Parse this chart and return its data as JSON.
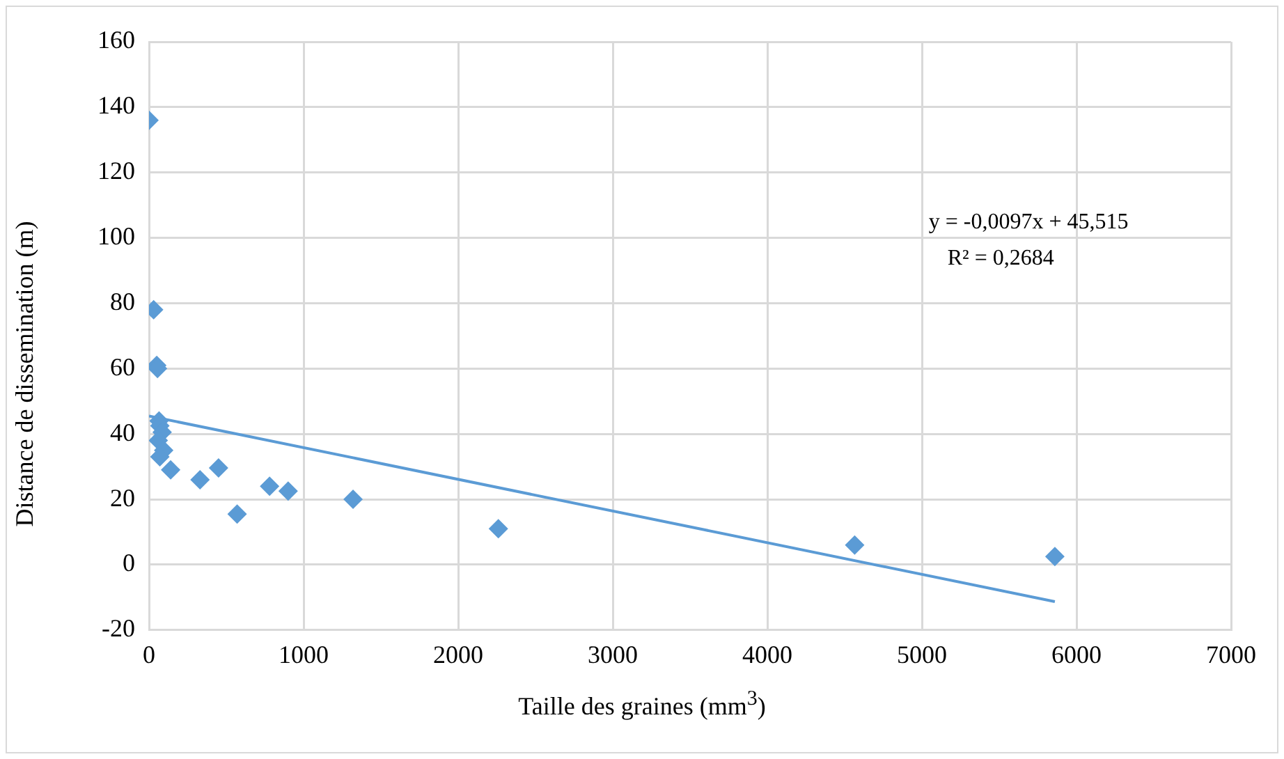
{
  "chart_data": {
    "type": "scatter",
    "xlabel": "Taille des graines (mm$^{3}$)",
    "ylabel": "Distance de dissemination (m)",
    "xlim": [
      0,
      7000
    ],
    "xticks": [
      0,
      1000,
      2000,
      3000,
      4000,
      5000,
      6000,
      7000
    ],
    "ylim": [
      -20,
      160
    ],
    "yticks": [
      -20,
      0,
      20,
      40,
      60,
      80,
      100,
      120,
      140,
      160
    ],
    "grid": true,
    "legend": false,
    "marker": "diamond",
    "annotations": [
      "y = -0,0097x + 45,515",
      "R² = 0,2684"
    ],
    "series": [
      {
        "color": "#5b9bd5",
        "x": [
          0,
          30,
          50,
          55,
          65,
          70,
          85,
          60,
          95,
          70,
          140,
          330,
          450,
          570,
          780,
          900,
          1320,
          2260,
          4565,
          5860
        ],
        "values": [
          136,
          78,
          61,
          60,
          44,
          42.5,
          40.5,
          38,
          35,
          33,
          29,
          26,
          29.6,
          15.5,
          24,
          22.5,
          20,
          11,
          6,
          2.5
        ]
      },
      {
        "type": "line",
        "color": "#5b9bd5",
        "marker": "none",
        "x": [
          0,
          5860
        ],
        "values": [
          45.5,
          -11.3
        ]
      }
    ]
  }
}
